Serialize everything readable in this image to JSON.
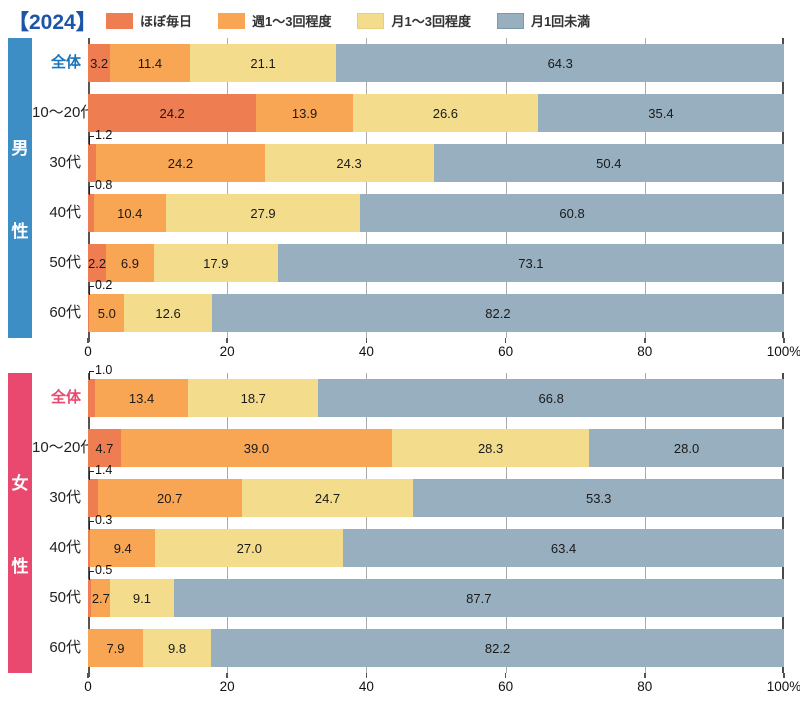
{
  "title": "【2024】",
  "legend": {
    "items": [
      {
        "key": "almost-daily",
        "label": "ほぼ毎日",
        "color": "#EE7D52",
        "border": "#EE7D52"
      },
      {
        "key": "weekly-1-3",
        "label": "週1〜3回程度",
        "color": "#F8A654",
        "border": "#F8A654"
      },
      {
        "key": "monthly-1-3",
        "label": "月1〜3回程度",
        "color": "#F3DD8D",
        "border": "#E8CD7C"
      },
      {
        "key": "less-than-monthly",
        "label": "月1回未満",
        "color": "#97AFBE",
        "border": "#7E99A9"
      }
    ]
  },
  "chart_data": {
    "type": "bar",
    "stacked": true,
    "orientation": "horizontal",
    "unit": "%",
    "xlim": [
      0,
      100
    ],
    "xticks": [
      0,
      20,
      40,
      60,
      80,
      100
    ],
    "xtick_labels": [
      "0",
      "20",
      "40",
      "60",
      "80",
      "100%"
    ],
    "series_names": [
      "ほぼ毎日",
      "週1〜3回程度",
      "月1〜3回程度",
      "月1回未満"
    ],
    "series_keys": [
      "almost-daily",
      "weekly-1-3",
      "monthly-1-3",
      "less-than-monthly"
    ],
    "series_colors": [
      "#EE7D52",
      "#F8A654",
      "#F3DD8D",
      "#97AFBE"
    ],
    "sections": [
      {
        "name": "男性",
        "key": "male",
        "accent": "#3E8EC6",
        "label_color": "#1B74BC",
        "rows": [
          {
            "key": "zentai",
            "label": "全体",
            "emphasis": true,
            "values": [
              3.2,
              11.4,
              21.1,
              64.3
            ],
            "callout_first": false
          },
          {
            "key": "10-20s",
            "label": "10〜20代",
            "emphasis": false,
            "values": [
              24.2,
              13.9,
              26.6,
              35.4
            ],
            "callout_first": false
          },
          {
            "key": "30s",
            "label": "30代",
            "emphasis": false,
            "values": [
              1.2,
              24.2,
              24.3,
              50.4
            ],
            "callout_first": true
          },
          {
            "key": "40s",
            "label": "40代",
            "emphasis": false,
            "values": [
              0.8,
              10.4,
              27.9,
              60.8
            ],
            "callout_first": true
          },
          {
            "key": "50s",
            "label": "50代",
            "emphasis": false,
            "values": [
              2.2,
              6.9,
              17.9,
              73.1
            ],
            "callout_first": false
          },
          {
            "key": "60s",
            "label": "60代",
            "emphasis": false,
            "values": [
              0.2,
              5.0,
              12.6,
              82.2
            ],
            "callout_first": true
          }
        ]
      },
      {
        "name": "女性",
        "key": "female",
        "accent": "#E9496E",
        "label_color": "#E9496E",
        "rows": [
          {
            "key": "zentai",
            "label": "全体",
            "emphasis": true,
            "values": [
              1.0,
              13.4,
              18.7,
              66.8
            ],
            "callout_first": true
          },
          {
            "key": "10-20s",
            "label": "10〜20代",
            "emphasis": false,
            "values": [
              4.7,
              39.0,
              28.3,
              28.0
            ],
            "callout_first": false
          },
          {
            "key": "30s",
            "label": "30代",
            "emphasis": false,
            "values": [
              1.4,
              20.7,
              24.7,
              53.3
            ],
            "callout_first": true
          },
          {
            "key": "40s",
            "label": "40代",
            "emphasis": false,
            "values": [
              0.3,
              9.4,
              27.0,
              63.4
            ],
            "callout_first": true
          },
          {
            "key": "50s",
            "label": "50代",
            "emphasis": false,
            "values": [
              0.5,
              2.7,
              9.1,
              87.7
            ],
            "callout_first": true
          },
          {
            "key": "60s",
            "label": "60代",
            "emphasis": false,
            "values": [
              0,
              7.9,
              9.8,
              82.2
            ],
            "callout_first": false,
            "hide_first": true
          }
        ]
      }
    ]
  }
}
